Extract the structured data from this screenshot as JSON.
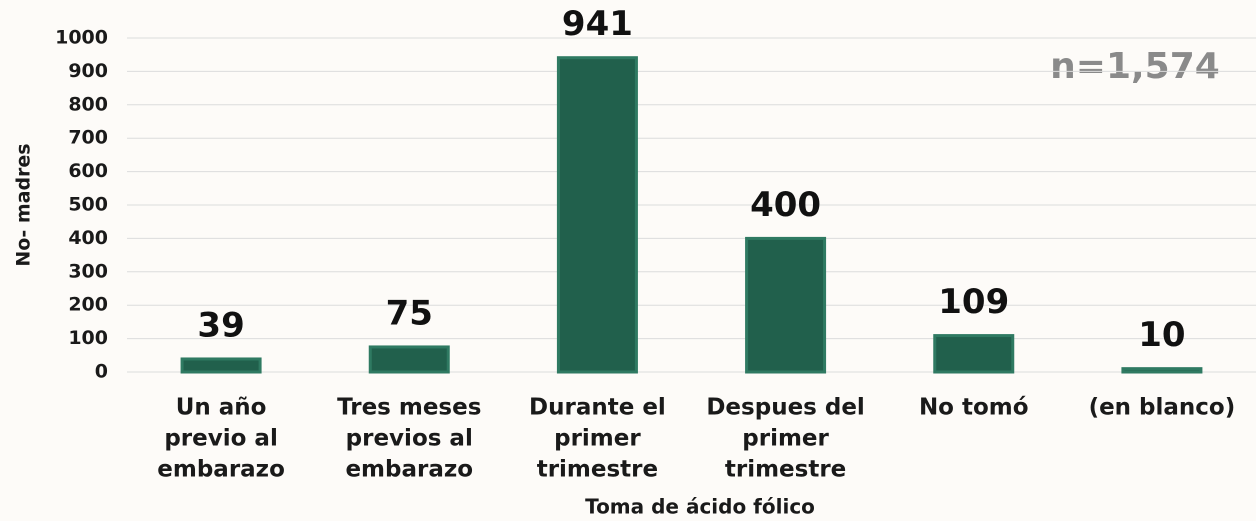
{
  "chart_data": {
    "type": "bar",
    "annotation": "n=1,574",
    "y_label": "No- madres",
    "x_label": "Toma de ácido fólico",
    "categories": [
      [
        "Un año",
        "previo al",
        "embarazo"
      ],
      [
        "Tres meses",
        "previos al",
        "embarazo"
      ],
      [
        "Durante el",
        "primer",
        "trimestre"
      ],
      [
        "Despues del",
        "primer",
        "trimestre"
      ],
      [
        "No tomó"
      ],
      [
        "(en blanco)"
      ]
    ],
    "values": [
      39,
      75,
      941,
      400,
      109,
      10
    ],
    "color": "#21604c",
    "ylim": [
      0,
      1000
    ],
    "yticks": [
      0,
      100,
      200,
      300,
      400,
      500,
      600,
      700,
      800,
      900,
      1000
    ],
    "grid": true
  }
}
